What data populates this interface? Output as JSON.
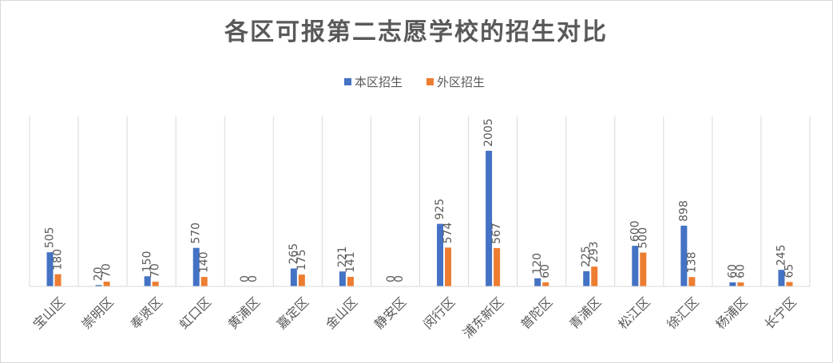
{
  "chart_data": {
    "type": "bar",
    "title": "各区可报第二志愿学校的招生对比",
    "categories": [
      "宝山区",
      "崇明区",
      "奉贤区",
      "虹口区",
      "黄浦区",
      "嘉定区",
      "金山区",
      "静安区",
      "闵行区",
      "浦东新区",
      "普陀区",
      "青浦区",
      "松江区",
      "徐汇区",
      "杨浦区",
      "长宁区"
    ],
    "series": [
      {
        "name": "本区招生",
        "color": "#4472c4",
        "values": [
          505,
          20,
          150,
          570,
          0,
          265,
          221,
          0,
          925,
          2005,
          120,
          225,
          600,
          898,
          60,
          245
        ]
      },
      {
        "name": "外区招生",
        "color": "#ed7d31",
        "values": [
          180,
          70,
          70,
          140,
          0,
          175,
          141,
          0,
          574,
          567,
          60,
          293,
          500,
          138,
          60,
          65
        ]
      }
    ],
    "ylim": [
      0,
      2400
    ],
    "grid": "vertical-separators",
    "legend": "top"
  }
}
